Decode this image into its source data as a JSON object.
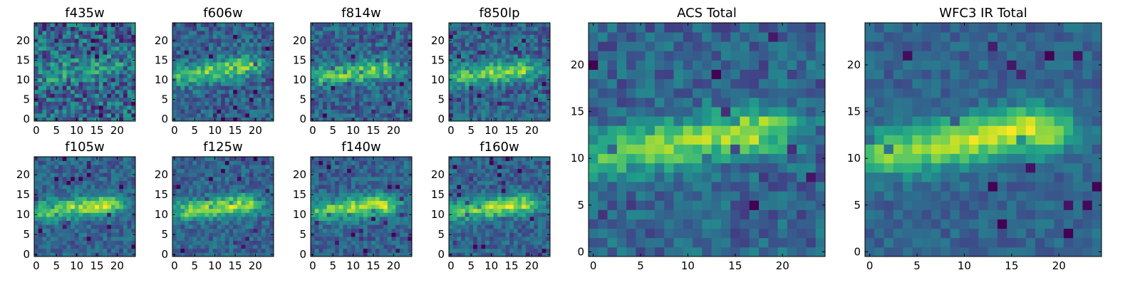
{
  "chart_data": [
    {
      "type": "heatmap",
      "title": "f435w",
      "band_group": "ACS",
      "xlim": [
        0,
        25
      ],
      "ylim": [
        0,
        25
      ],
      "xticks": [
        0,
        5,
        10,
        15,
        20
      ],
      "yticks": [
        0,
        5,
        10,
        15,
        20
      ],
      "source_x": 3,
      "source_y": 11.5,
      "source_x2": 14,
      "source_y2": 13.5,
      "noise": 0.55,
      "contrast": 0.35,
      "seed": 435
    },
    {
      "type": "heatmap",
      "title": "f606w",
      "band_group": "ACS",
      "xlim": [
        0,
        25
      ],
      "ylim": [
        0,
        25
      ],
      "xticks": [
        0,
        5,
        10,
        15,
        20
      ],
      "yticks": [
        0,
        5,
        10,
        15,
        20
      ],
      "source_x": 3,
      "source_y": 11,
      "source_x2": 14,
      "source_y2": 13.5,
      "noise": 0.35,
      "contrast": 0.75,
      "seed": 606
    },
    {
      "type": "heatmap",
      "title": "f814w",
      "band_group": "ACS",
      "xlim": [
        0,
        25
      ],
      "ylim": [
        0,
        25
      ],
      "xticks": [
        0,
        5,
        10,
        15,
        20
      ],
      "yticks": [
        0,
        5,
        10,
        15,
        20
      ],
      "source_x": 3,
      "source_y": 11,
      "source_x2": 14,
      "source_y2": 12.5,
      "noise": 0.35,
      "contrast": 0.75,
      "seed": 814
    },
    {
      "type": "heatmap",
      "title": "f850lp",
      "band_group": "ACS",
      "xlim": [
        0,
        25
      ],
      "ylim": [
        0,
        25
      ],
      "xticks": [
        0,
        5,
        10,
        15,
        20
      ],
      "yticks": [
        0,
        5,
        10,
        15,
        20
      ],
      "source_x": 3,
      "source_y": 11,
      "source_x2": 14,
      "source_y2": 12.5,
      "noise": 0.35,
      "contrast": 0.75,
      "seed": 850
    },
    {
      "type": "heatmap",
      "title": "f105w",
      "band_group": "WFC3 IR",
      "xlim": [
        0,
        25
      ],
      "ylim": [
        0,
        25
      ],
      "xticks": [
        0,
        5,
        10,
        15,
        20
      ],
      "yticks": [
        0,
        5,
        10,
        15,
        20
      ],
      "source_x": 3,
      "source_y": 11,
      "source_x2": 14,
      "source_y2": 12.5,
      "noise": 0.28,
      "contrast": 0.85,
      "seed": 105
    },
    {
      "type": "heatmap",
      "title": "f125w",
      "band_group": "WFC3 IR",
      "xlim": [
        0,
        25
      ],
      "ylim": [
        0,
        25
      ],
      "xticks": [
        0,
        5,
        10,
        15,
        20
      ],
      "yticks": [
        0,
        5,
        10,
        15,
        20
      ],
      "source_x": 3,
      "source_y": 11,
      "source_x2": 14,
      "source_y2": 12.5,
      "noise": 0.28,
      "contrast": 0.85,
      "seed": 125
    },
    {
      "type": "heatmap",
      "title": "f140w",
      "band_group": "WFC3 IR",
      "xlim": [
        0,
        25
      ],
      "ylim": [
        0,
        25
      ],
      "xticks": [
        0,
        5,
        10,
        15,
        20
      ],
      "yticks": [
        0,
        5,
        10,
        15,
        20
      ],
      "source_x": 3,
      "source_y": 11,
      "source_x2": 14,
      "source_y2": 12.5,
      "noise": 0.28,
      "contrast": 0.85,
      "seed": 140
    },
    {
      "type": "heatmap",
      "title": "f160w",
      "band_group": "WFC3 IR",
      "xlim": [
        0,
        25
      ],
      "ylim": [
        0,
        25
      ],
      "xticks": [
        0,
        5,
        10,
        15,
        20
      ],
      "yticks": [
        0,
        5,
        10,
        15,
        20
      ],
      "source_x": 3,
      "source_y": 11,
      "source_x2": 14,
      "source_y2": 12.5,
      "noise": 0.28,
      "contrast": 0.85,
      "seed": 160
    },
    {
      "type": "heatmap",
      "title": "ACS Total",
      "band_group": "ACS",
      "xlim": [
        0,
        25
      ],
      "ylim": [
        0,
        25
      ],
      "xticks": [
        0,
        5,
        10,
        15,
        20
      ],
      "yticks": [
        0,
        5,
        10,
        15,
        20
      ],
      "source_x": 2,
      "source_y": 10.5,
      "source_x2": 14,
      "source_y2": 13,
      "noise": 0.3,
      "contrast": 0.8,
      "seed": 999
    },
    {
      "type": "heatmap",
      "title": "WFC3 IR Total",
      "band_group": "WFC3 IR",
      "xlim": [
        0,
        25
      ],
      "ylim": [
        0,
        25
      ],
      "xticks": [
        0,
        5,
        10,
        15,
        20
      ],
      "yticks": [
        0,
        5,
        10,
        15,
        20
      ],
      "source_x": 2,
      "source_y": 10.5,
      "source_x2": 14,
      "source_y2": 13,
      "noise": 0.2,
      "contrast": 0.9,
      "seed": 777
    }
  ],
  "colors": {
    "colormap": "viridis",
    "low": "#440154",
    "mid": "#21918c",
    "high": "#fde725",
    "axes": "#000000",
    "background": "#ffffff"
  }
}
